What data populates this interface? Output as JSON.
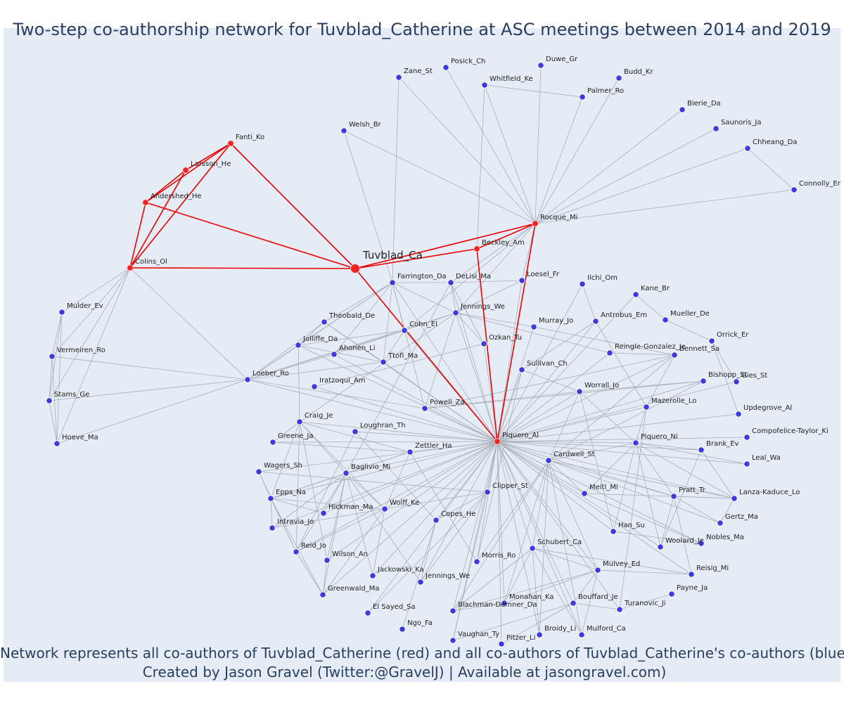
{
  "title": "Two-step co-authorship network for Tuvblad_Catherine at ASC meetings between 2014 and 2019",
  "caption": {
    "line1": "Network represents all co-authors of Tuvblad_Catherine (red) and all co-authors of Tuvblad_Catherine's co-authors (blue)",
    "line2": "Created by Jason Gravel (Twitter:@GravelJ) | Available at jasongravel.com)"
  },
  "colors": {
    "ego": "#ee2222",
    "coauthor": "#3b3be0",
    "red_edge": "#ee0000",
    "gray_edge": "#a9afba",
    "background": "#e5ecf6"
  },
  "network": {
    "center": "Tuvblad_Ca",
    "red_nodes": [
      "Tuvblad_Ca",
      "Fanti_Ko",
      "Larsson_He",
      "Andershed_He",
      "Colins_Ol",
      "Rocque_Mi",
      "Beckley_Am",
      "Piquero_Al"
    ],
    "nodes": [
      "Tuvblad_Ca",
      "Fanti_Ko",
      "Larsson_He",
      "Andershed_He",
      "Colins_Ol",
      "Rocque_Mi",
      "Beckley_Am",
      "Piquero_Al",
      "Zane_St",
      "Posick_Ch",
      "Duwe_Gr",
      "Whitfield_Ke",
      "Budd_Kr",
      "Palmer_Ro",
      "Bierie_Da",
      "Saunoris_Ja",
      "Chheang_Da",
      "Connolly_Er",
      "Welsh_Br",
      "Mulder_Ev",
      "Vermeiren_Ro",
      "Stams_Ge",
      "Hoeve_Ma",
      "Loeber_Ro",
      "Farrington_Da",
      "DeLisi_Ma",
      "Loesel_Fr",
      "Ilchi_Om",
      "Kane_Br",
      "Theobald_De",
      "Jennings_We",
      "Cohn_El",
      "Mueller_De",
      "Antrobus_Em",
      "Jolliffe_Da",
      "Ahonen_Li",
      "Murray_Jo",
      "Ozkan_Tu",
      "Orrick_Er",
      "Ttofi_Ma",
      "Reingle-Gonzalez_Je",
      "Bennett_Sa",
      "Sullivan_Ch",
      "Iratzoqui_Am",
      "Bishopp_St",
      "Gies_St",
      "Worrall_Jo",
      "Mazerolle_Lo",
      "Powell_Za",
      "Updegrove_Al",
      "Craig_Je",
      "Loughran_Th",
      "Greene_Ja",
      "Compofelice-Taylor_Ki",
      "Zettler_Ha",
      "Piquero_Ni",
      "Brank_Ev",
      "Cardwell_St",
      "Leal_Wa",
      "Wagers_Sh",
      "Baglivio_Mi",
      "Clipper_St",
      "Meitl_Mi",
      "Pratt_Tr",
      "Lanza-Kaduce_Lo",
      "Epps_Na",
      "Hickman_Ma",
      "Wolff_Ke",
      "Copes_He",
      "Gertz_Ma",
      "Intravia_Jo",
      "Han_Su",
      "Woolard_Je",
      "Nobles_Ma",
      "Reid_Jo",
      "Wilson_An",
      "Schubert_Ca",
      "Morris_Ro",
      "Mulvey_Ed",
      "Reisig_Mi",
      "Jackowski_Ka",
      "Jennings_We2",
      "Greenwald_Ma",
      "Payne_Ja",
      "Monahan_Ka",
      "Bouffard_Je",
      "Blachman-Demner_Da",
      "Turanovic_Ji",
      "El Sayed_Sa",
      "Ngo_Fa",
      "Broidy_Li",
      "Mulford_Ca",
      "Vaughan_Ty",
      "Pitzer_Li"
    ],
    "labels": {
      "Jennings_We2": "Jennings_We"
    }
  }
}
